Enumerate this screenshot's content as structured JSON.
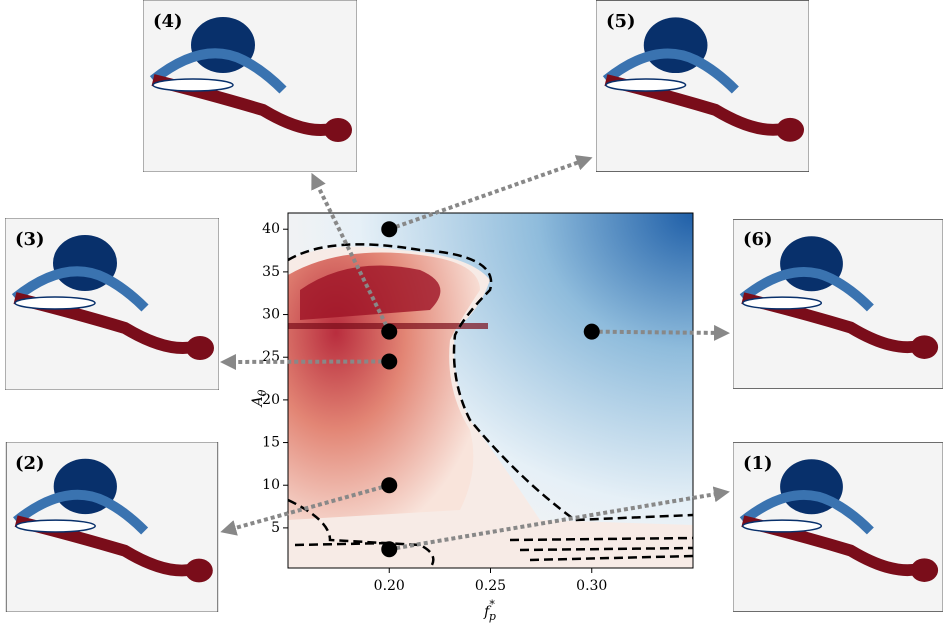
{
  "chart_data": {
    "type": "contour",
    "xlabel": {
      "main": "f",
      "sup": "*",
      "sub": "p"
    },
    "ylabel": {
      "main": "A",
      "sub": "θ"
    },
    "xlim": [
      0.15,
      0.35
    ],
    "ylim": [
      0.3,
      41.9
    ],
    "xticks": [
      {
        "value": 0.2,
        "label": "0.20"
      },
      {
        "value": 0.25,
        "label": "0.25"
      },
      {
        "value": 0.3,
        "label": "0.30"
      }
    ],
    "yticks": [
      5,
      10,
      15,
      20,
      25,
      30,
      35,
      40
    ],
    "point_color": "#000000",
    "arrow_color": "#888888",
    "cases": [
      {
        "label": "(1)",
        "x": 0.2,
        "y": 2.5
      },
      {
        "label": "(2)",
        "x": 0.2,
        "y": 10
      },
      {
        "label": "(3)",
        "x": 0.2,
        "y": 24.5
      },
      {
        "label": "(4)",
        "x": 0.2,
        "y": 28
      },
      {
        "label": "(5)",
        "x": 0.2,
        "y": 40
      },
      {
        "label": "(6)",
        "x": 0.3,
        "y": 28
      }
    ]
  }
}
